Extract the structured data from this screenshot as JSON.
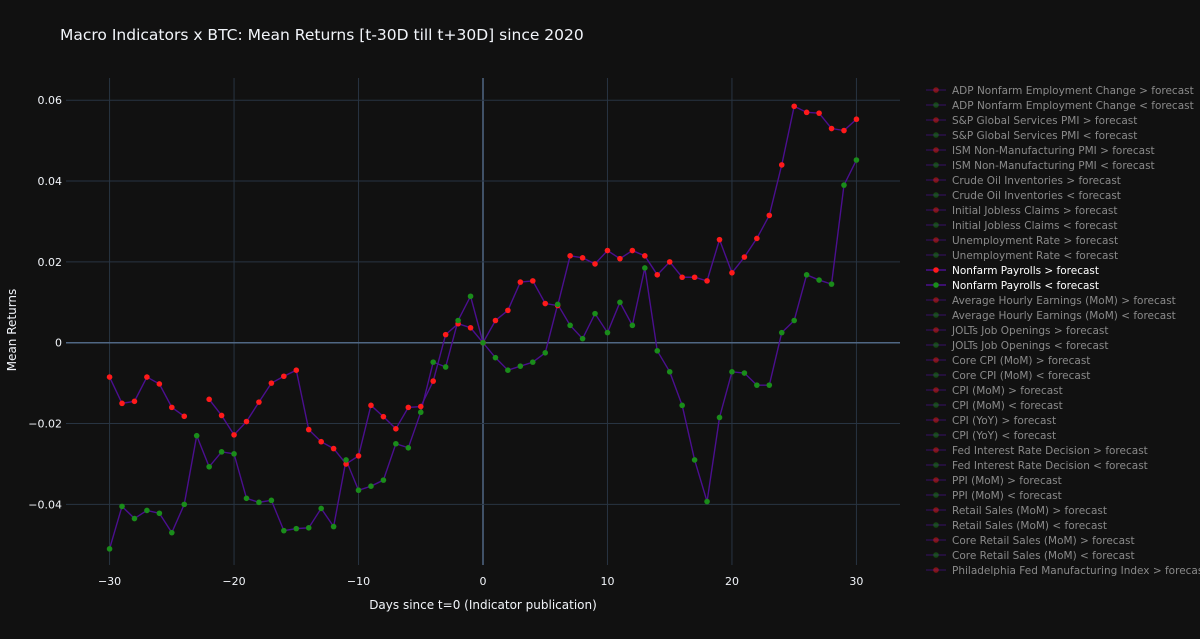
{
  "chart_data": {
    "type": "line",
    "title": "Macro Indicators x BTC: Mean Returns [t-30D till t+30D] since 2020",
    "xlabel": "Days since t=0 (Indicator publication)",
    "ylabel": "Mean Returns",
    "xlim": [
      -33.5,
      33.5
    ],
    "ylim": [
      -0.055,
      0.0655
    ],
    "x_ticks": [
      -30,
      -20,
      -10,
      0,
      10,
      20,
      30
    ],
    "y_ticks": [
      -0.04,
      -0.02,
      0,
      0.02,
      0.04,
      0.06
    ],
    "x_tick_labels": [
      "−30",
      "−20",
      "−10",
      "0",
      "10",
      "20",
      "30"
    ],
    "y_tick_labels": [
      "−0.04",
      "−0.02",
      "0",
      "0.02",
      "0.04",
      "0.06"
    ],
    "grid": true,
    "legend_position": "right",
    "colors": {
      "background": "#111111",
      "grid": "#283442",
      "zeroline": "#506784",
      "line": "#4b0f8f",
      "marker_above": "#ff1a1a",
      "marker_below": "#1a8c1a",
      "legend_active": "#ffffff",
      "legend_inactive": "#8a8a8a"
    },
    "x": [
      -30,
      -29,
      -28,
      -27,
      -26,
      -25,
      -24,
      -23,
      -22,
      -21,
      -20,
      -19,
      -18,
      -17,
      -16,
      -15,
      -14,
      -13,
      -12,
      -11,
      -10,
      -9,
      -8,
      -7,
      -6,
      -5,
      -4,
      -3,
      -2,
      -1,
      0,
      1,
      2,
      3,
      4,
      5,
      6,
      7,
      8,
      9,
      10,
      11,
      12,
      13,
      14,
      15,
      16,
      17,
      18,
      19,
      20,
      21,
      22,
      23,
      24,
      25,
      26,
      27,
      28,
      29,
      30
    ],
    "series": [
      {
        "name": "Nonfarm Payrolls  > forecast",
        "values": [
          -0.0085,
          -0.015,
          -0.0145,
          -0.0085,
          -0.0102,
          -0.016,
          -0.0182,
          null,
          -0.014,
          -0.018,
          -0.0228,
          -0.0195,
          -0.0147,
          -0.01,
          -0.0083,
          -0.0068,
          -0.0215,
          -0.0245,
          -0.0262,
          -0.03,
          -0.028,
          -0.0155,
          -0.0183,
          -0.0213,
          -0.016,
          -0.0158,
          -0.0095,
          0.002,
          0.0047,
          0.0037,
          0.0,
          0.0055,
          0.008,
          0.015,
          0.0153,
          0.0097,
          0.0092,
          0.0215,
          0.021,
          0.0195,
          0.0228,
          0.0208,
          0.0228,
          0.0215,
          0.0168,
          0.02,
          0.0162,
          0.0162,
          0.0153,
          0.0255,
          0.0173,
          0.0212,
          0.0258,
          0.0315,
          0.044,
          0.0585,
          0.057,
          0.0568,
          0.053,
          0.0525,
          0.0553
        ]
      },
      {
        "name": "Nonfarm Payrolls  < forecast",
        "values": [
          -0.051,
          -0.0405,
          -0.0435,
          -0.0415,
          -0.0422,
          -0.047,
          -0.04,
          -0.023,
          -0.0307,
          -0.027,
          -0.0275,
          -0.0385,
          -0.0395,
          -0.039,
          -0.0465,
          -0.046,
          -0.0458,
          -0.041,
          -0.0455,
          -0.029,
          -0.0365,
          -0.0355,
          -0.034,
          -0.025,
          -0.026,
          -0.0172,
          -0.0048,
          -0.006,
          0.0055,
          0.0115,
          0.0,
          -0.0037,
          -0.0068,
          -0.0058,
          -0.0048,
          -0.0025,
          0.0095,
          0.0043,
          0.001,
          0.0072,
          0.0025,
          0.01,
          0.0043,
          0.0185,
          -0.002,
          -0.0072,
          -0.0155,
          -0.029,
          -0.0393,
          -0.0185,
          -0.0072,
          -0.0075,
          -0.0105,
          -0.0105,
          0.0025,
          0.0055,
          0.0168,
          0.0155,
          0.0145,
          0.039,
          0.0452
        ]
      }
    ],
    "legend": [
      {
        "label": "ADP Nonfarm Employment Change  > forecast",
        "kind": "above",
        "active": false
      },
      {
        "label": "ADP Nonfarm Employment Change  < forecast",
        "kind": "below",
        "active": false
      },
      {
        "label": "S&P Global Services PMI  > forecast",
        "kind": "above",
        "active": false
      },
      {
        "label": "S&P Global Services PMI  < forecast",
        "kind": "below",
        "active": false
      },
      {
        "label": "ISM Non-Manufacturing PMI  > forecast",
        "kind": "above",
        "active": false
      },
      {
        "label": "ISM Non-Manufacturing PMI  < forecast",
        "kind": "below",
        "active": false
      },
      {
        "label": "Crude Oil Inventories > forecast",
        "kind": "above",
        "active": false
      },
      {
        "label": "Crude Oil Inventories < forecast",
        "kind": "below",
        "active": false
      },
      {
        "label": "Initial Jobless Claims > forecast",
        "kind": "above",
        "active": false
      },
      {
        "label": "Initial Jobless Claims  < forecast",
        "kind": "below",
        "active": false
      },
      {
        "label": "Unemployment Rate  > forecast",
        "kind": "above",
        "active": false
      },
      {
        "label": "Unemployment Rate  < forecast",
        "kind": "below",
        "active": false
      },
      {
        "label": "Nonfarm Payrolls  > forecast",
        "kind": "above",
        "active": true
      },
      {
        "label": "Nonfarm Payrolls  < forecast",
        "kind": "below",
        "active": true
      },
      {
        "label": "Average Hourly Earnings (MoM)  > forecast",
        "kind": "above",
        "active": false
      },
      {
        "label": "Average Hourly Earnings (MoM)  < forecast",
        "kind": "below",
        "active": false
      },
      {
        "label": "JOLTs Job Openings  > forecast",
        "kind": "above",
        "active": false
      },
      {
        "label": "JOLTs Job Openings  < forecast",
        "kind": "below",
        "active": false
      },
      {
        "label": "Core CPI (MoM)  > forecast",
        "kind": "above",
        "active": false
      },
      {
        "label": "Core CPI (MoM)  < forecast",
        "kind": "below",
        "active": false
      },
      {
        "label": "CPI (MoM)  > forecast",
        "kind": "above",
        "active": false
      },
      {
        "label": "CPI (MoM)  < forecast",
        "kind": "below",
        "active": false
      },
      {
        "label": "CPI (YoY)  > forecast",
        "kind": "above",
        "active": false
      },
      {
        "label": "CPI (YoY)  < forecast",
        "kind": "below",
        "active": false
      },
      {
        "label": "Fed Interest Rate Decision > forecast",
        "kind": "above",
        "active": false
      },
      {
        "label": "Fed Interest Rate Decision < forecast",
        "kind": "below",
        "active": false
      },
      {
        "label": "PPI (MoM)  > forecast",
        "kind": "above",
        "active": false
      },
      {
        "label": "PPI (MoM)  < forecast",
        "kind": "below",
        "active": false
      },
      {
        "label": "Retail Sales (MoM)  > forecast",
        "kind": "above",
        "active": false
      },
      {
        "label": "Retail Sales (MoM)  < forecast",
        "kind": "below",
        "active": false
      },
      {
        "label": "Core Retail Sales (MoM)  > forecast",
        "kind": "above",
        "active": false
      },
      {
        "label": "Core Retail Sales (MoM)  < forecast",
        "kind": "below",
        "active": false
      },
      {
        "label": "Philadelphia Fed Manufacturing Index  > forecast",
        "kind": "above",
        "active": false
      }
    ]
  }
}
